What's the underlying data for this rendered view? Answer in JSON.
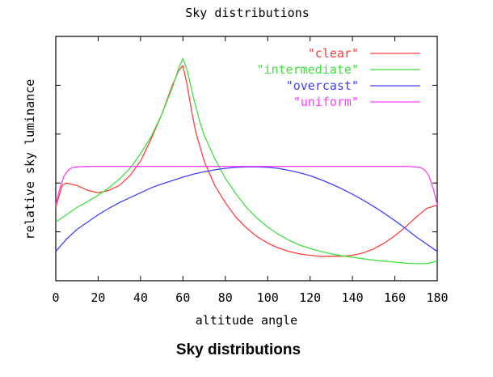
{
  "caption": "Sky distributions",
  "chart_data": {
    "type": "line",
    "title": "Sky distributions",
    "xlabel": "altitude angle",
    "ylabel": "relative sky luminance",
    "xlim": [
      0,
      180
    ],
    "ylim": [
      0,
      5
    ],
    "x_ticks": [
      0,
      20,
      40,
      60,
      80,
      100,
      120,
      140,
      160,
      180
    ],
    "y_ticks": [
      1,
      2,
      3,
      4
    ],
    "show_y_tick_labels": false,
    "grid": false,
    "legend_position": "top-right",
    "series": [
      {
        "name": "\"clear\"",
        "color": "#ff4040",
        "points": [
          [
            0,
            1.5
          ],
          [
            3,
            1.95
          ],
          [
            5,
            2.0
          ],
          [
            10,
            1.95
          ],
          [
            15,
            1.85
          ],
          [
            20,
            1.8
          ],
          [
            25,
            1.85
          ],
          [
            30,
            1.95
          ],
          [
            35,
            2.15
          ],
          [
            40,
            2.45
          ],
          [
            45,
            2.9
          ],
          [
            50,
            3.4
          ],
          [
            55,
            4.0
          ],
          [
            58,
            4.3
          ],
          [
            60,
            4.4
          ],
          [
            62,
            4.0
          ],
          [
            64,
            3.5
          ],
          [
            66,
            3.05
          ],
          [
            70,
            2.45
          ],
          [
            75,
            1.95
          ],
          [
            80,
            1.6
          ],
          [
            85,
            1.3
          ],
          [
            90,
            1.08
          ],
          [
            95,
            0.9
          ],
          [
            100,
            0.77
          ],
          [
            105,
            0.67
          ],
          [
            110,
            0.6
          ],
          [
            115,
            0.55
          ],
          [
            120,
            0.52
          ],
          [
            125,
            0.5
          ],
          [
            130,
            0.5
          ],
          [
            135,
            0.5
          ],
          [
            140,
            0.52
          ],
          [
            145,
            0.57
          ],
          [
            150,
            0.65
          ],
          [
            155,
            0.77
          ],
          [
            160,
            0.92
          ],
          [
            165,
            1.1
          ],
          [
            170,
            1.3
          ],
          [
            175,
            1.48
          ],
          [
            180,
            1.55
          ]
        ]
      },
      {
        "name": "\"intermediate\"",
        "color": "#40e040",
        "points": [
          [
            0,
            1.2
          ],
          [
            5,
            1.35
          ],
          [
            10,
            1.5
          ],
          [
            15,
            1.62
          ],
          [
            20,
            1.75
          ],
          [
            25,
            1.9
          ],
          [
            30,
            2.08
          ],
          [
            35,
            2.3
          ],
          [
            40,
            2.6
          ],
          [
            45,
            2.95
          ],
          [
            50,
            3.4
          ],
          [
            55,
            3.95
          ],
          [
            58,
            4.35
          ],
          [
            60,
            4.55
          ],
          [
            62,
            4.3
          ],
          [
            65,
            3.75
          ],
          [
            68,
            3.25
          ],
          [
            70,
            2.98
          ],
          [
            75,
            2.5
          ],
          [
            80,
            2.1
          ],
          [
            85,
            1.78
          ],
          [
            90,
            1.5
          ],
          [
            95,
            1.28
          ],
          [
            100,
            1.1
          ],
          [
            105,
            0.95
          ],
          [
            110,
            0.83
          ],
          [
            115,
            0.73
          ],
          [
            120,
            0.66
          ],
          [
            125,
            0.6
          ],
          [
            130,
            0.55
          ],
          [
            135,
            0.51
          ],
          [
            140,
            0.48
          ],
          [
            145,
            0.45
          ],
          [
            150,
            0.42
          ],
          [
            155,
            0.4
          ],
          [
            160,
            0.38
          ],
          [
            165,
            0.36
          ],
          [
            170,
            0.35
          ],
          [
            175,
            0.35
          ],
          [
            180,
            0.4
          ]
        ]
      },
      {
        "name": "\"overcast\"",
        "color": "#4040ff",
        "points": [
          [
            0,
            0.6
          ],
          [
            5,
            0.85
          ],
          [
            10,
            1.05
          ],
          [
            15,
            1.2
          ],
          [
            20,
            1.35
          ],
          [
            25,
            1.48
          ],
          [
            30,
            1.6
          ],
          [
            35,
            1.7
          ],
          [
            40,
            1.8
          ],
          [
            45,
            1.9
          ],
          [
            50,
            1.98
          ],
          [
            55,
            2.05
          ],
          [
            60,
            2.12
          ],
          [
            65,
            2.18
          ],
          [
            70,
            2.23
          ],
          [
            75,
            2.27
          ],
          [
            80,
            2.3
          ],
          [
            85,
            2.32
          ],
          [
            90,
            2.33
          ],
          [
            95,
            2.33
          ],
          [
            100,
            2.32
          ],
          [
            105,
            2.3
          ],
          [
            110,
            2.26
          ],
          [
            115,
            2.21
          ],
          [
            120,
            2.15
          ],
          [
            125,
            2.07
          ],
          [
            130,
            1.98
          ],
          [
            135,
            1.88
          ],
          [
            140,
            1.77
          ],
          [
            145,
            1.65
          ],
          [
            150,
            1.52
          ],
          [
            155,
            1.38
          ],
          [
            160,
            1.23
          ],
          [
            165,
            1.07
          ],
          [
            170,
            0.9
          ],
          [
            175,
            0.75
          ],
          [
            180,
            0.6
          ]
        ]
      },
      {
        "name": "\"uniform\"",
        "color": "#ff40ff",
        "points": [
          [
            0,
            1.55
          ],
          [
            2,
            1.9
          ],
          [
            4,
            2.15
          ],
          [
            6,
            2.27
          ],
          [
            8,
            2.32
          ],
          [
            10,
            2.33
          ],
          [
            15,
            2.34
          ],
          [
            20,
            2.34
          ],
          [
            40,
            2.34
          ],
          [
            60,
            2.34
          ],
          [
            80,
            2.34
          ],
          [
            100,
            2.34
          ],
          [
            120,
            2.34
          ],
          [
            140,
            2.34
          ],
          [
            160,
            2.34
          ],
          [
            165,
            2.34
          ],
          [
            170,
            2.33
          ],
          [
            172,
            2.32
          ],
          [
            174,
            2.27
          ],
          [
            176,
            2.15
          ],
          [
            178,
            1.9
          ],
          [
            180,
            1.55
          ]
        ]
      }
    ]
  }
}
